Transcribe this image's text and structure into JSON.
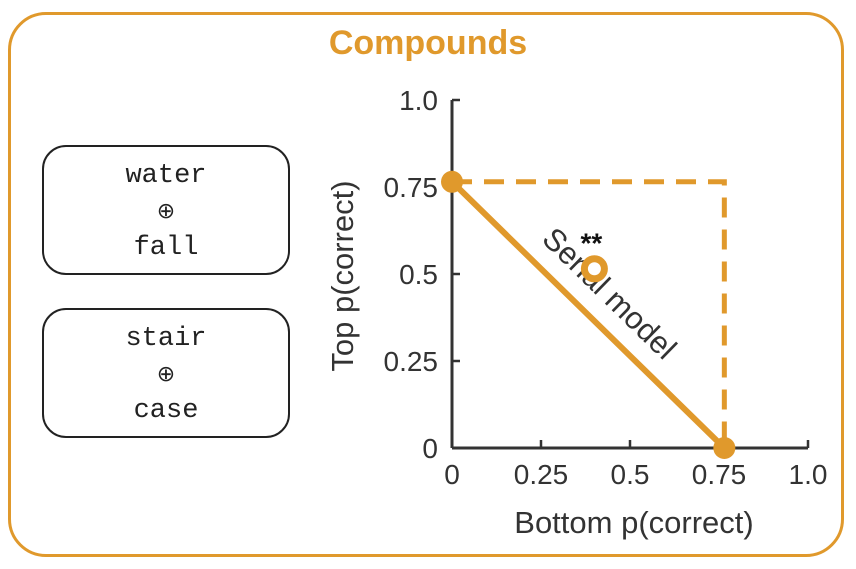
{
  "figure": {
    "title": "Compounds",
    "cards": [
      {
        "top": "water",
        "symbol": "⊕",
        "bottom": "fall"
      },
      {
        "top": "stair",
        "symbol": "⊕",
        "bottom": "case"
      }
    ]
  },
  "chart_data": {
    "type": "scatter",
    "title": "",
    "xlabel": "Bottom p(correct)",
    "ylabel": "Top p(correct)",
    "xlim": [
      0,
      1.0
    ],
    "ylim": [
      0,
      1.0
    ],
    "xticks": [
      {
        "value": 0,
        "label": "0"
      },
      {
        "value": 0.25,
        "label": "0.25"
      },
      {
        "value": 0.5,
        "label": "0.5"
      },
      {
        "value": 0.75,
        "label": "0.75"
      },
      {
        "value": 1.0,
        "label": "1.0"
      }
    ],
    "yticks": [
      {
        "value": 0,
        "label": "0"
      },
      {
        "value": 0.25,
        "label": "0.25"
      },
      {
        "value": 0.5,
        "label": "0.5"
      },
      {
        "value": 0.75,
        "label": "0.75"
      },
      {
        "value": 1.0,
        "label": "1.0"
      }
    ],
    "serial_model_line": {
      "label": "Serial model",
      "points": [
        [
          0,
          0.765
        ],
        [
          0.765,
          0
        ]
      ]
    },
    "parallel_bound": {
      "style": "dashed",
      "points": [
        [
          0,
          0.765
        ],
        [
          0.765,
          0.765
        ],
        [
          0.765,
          0
        ]
      ]
    },
    "endpoints": [
      [
        0,
        0.765
      ],
      [
        0.765,
        0
      ]
    ],
    "observed": {
      "x": 0.4,
      "y": 0.515,
      "y_err": 0.03,
      "annotation": "**"
    },
    "colors": {
      "accent": "#e0992c",
      "axis": "#333333"
    }
  }
}
